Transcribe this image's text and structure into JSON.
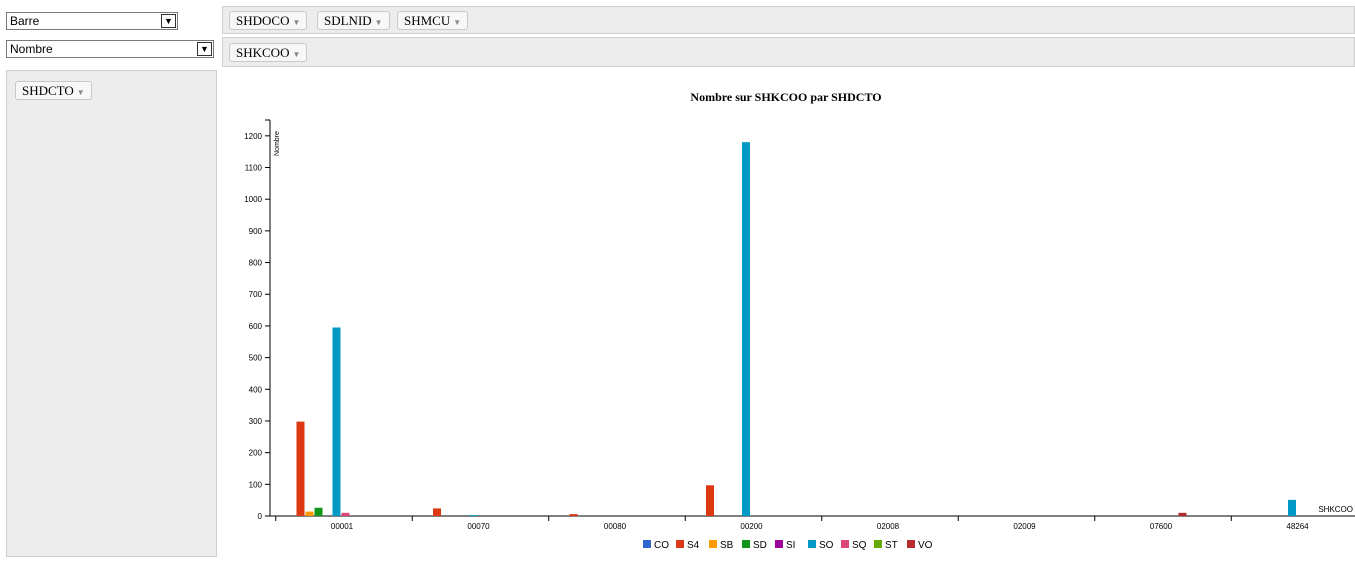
{
  "controls": {
    "chart_type_select": "Barre",
    "aggregator_select": "Nombre"
  },
  "filters_row": [
    "SHDOCO",
    "SDLNID",
    "SHMCU"
  ],
  "cols_row": [
    "SHKCOO"
  ],
  "rows_row": [
    "SHDCTO"
  ],
  "chart_data": {
    "type": "bar",
    "title": "Nombre sur SHKCOO par SHDCTO",
    "ylabel": "Nombre",
    "xlabel": "SHKCOO",
    "ylim": [
      0,
      1250
    ],
    "yticks": [
      0,
      100,
      200,
      300,
      400,
      500,
      600,
      700,
      800,
      900,
      1000,
      1100,
      1200
    ],
    "categories": [
      "00001",
      "00070",
      "00080",
      "00200",
      "02008",
      "02009",
      "07600",
      "48264"
    ],
    "series": [
      {
        "name": "CO",
        "color": "#3366cc",
        "values": [
          0,
          0,
          0,
          0,
          0,
          0,
          0,
          0
        ]
      },
      {
        "name": "S4",
        "color": "#dc3912",
        "values": [
          298,
          24,
          6,
          97,
          0,
          0,
          0,
          0
        ]
      },
      {
        "name": "SB",
        "color": "#ff9900",
        "values": [
          14,
          0,
          0,
          0,
          0,
          0,
          0,
          0
        ]
      },
      {
        "name": "SD",
        "color": "#109618",
        "values": [
          26,
          0,
          0,
          0,
          0,
          0,
          0,
          0
        ]
      },
      {
        "name": "SI",
        "color": "#990099",
        "values": [
          0,
          0,
          0,
          0,
          0,
          0,
          0,
          0
        ]
      },
      {
        "name": "SO",
        "color": "#0099c6",
        "values": [
          595,
          3,
          0,
          1180,
          0,
          0,
          0,
          51
        ]
      },
      {
        "name": "SQ",
        "color": "#dd4477",
        "values": [
          10,
          0,
          0,
          0,
          0,
          0,
          0,
          0
        ]
      },
      {
        "name": "ST",
        "color": "#66aa00",
        "values": [
          0,
          0,
          0,
          0,
          0,
          0,
          0,
          0
        ]
      },
      {
        "name": "VO",
        "color": "#b82e2e",
        "values": [
          0,
          0,
          0,
          0,
          0,
          0,
          10,
          0
        ]
      }
    ],
    "grid": false,
    "legend_position": "bottom"
  }
}
